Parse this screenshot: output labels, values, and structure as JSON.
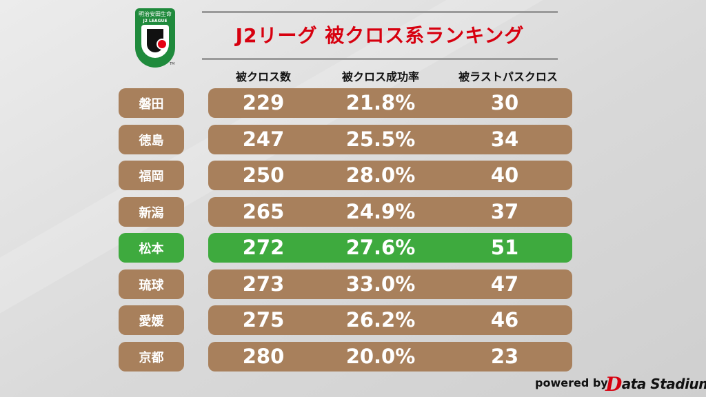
{
  "title": "J2リーグ 被クロス系ランキング",
  "logo": {
    "sponsor": "明治安田生命",
    "league": "J2 LEAGUE",
    "tm": "TM"
  },
  "columns": [
    "被クロス数",
    "被クロス成功率",
    "被ラストパスクロス"
  ],
  "rows": [
    {
      "team": "磐田",
      "crosses": "229",
      "rate": "21.8%",
      "lastpass": "30",
      "highlight": false
    },
    {
      "team": "徳島",
      "crosses": "247",
      "rate": "25.5%",
      "lastpass": "34",
      "highlight": false
    },
    {
      "team": "福岡",
      "crosses": "250",
      "rate": "28.0%",
      "lastpass": "40",
      "highlight": false
    },
    {
      "team": "新潟",
      "crosses": "265",
      "rate": "24.9%",
      "lastpass": "37",
      "highlight": false
    },
    {
      "team": "松本",
      "crosses": "272",
      "rate": "27.6%",
      "lastpass": "51",
      "highlight": true
    },
    {
      "team": "琉球",
      "crosses": "273",
      "rate": "33.0%",
      "lastpass": "47",
      "highlight": false
    },
    {
      "team": "愛媛",
      "crosses": "275",
      "rate": "26.2%",
      "lastpass": "46",
      "highlight": false
    },
    {
      "team": "京都",
      "crosses": "280",
      "rate": "20.0%",
      "lastpass": "23",
      "highlight": false
    }
  ],
  "colors": {
    "row": "#a8805c",
    "highlight": "#3eaa3e",
    "title": "#d7000f"
  },
  "footer": {
    "powered": "powered by",
    "brand_initial": "D",
    "brand_rest": "ata Stadium"
  }
}
